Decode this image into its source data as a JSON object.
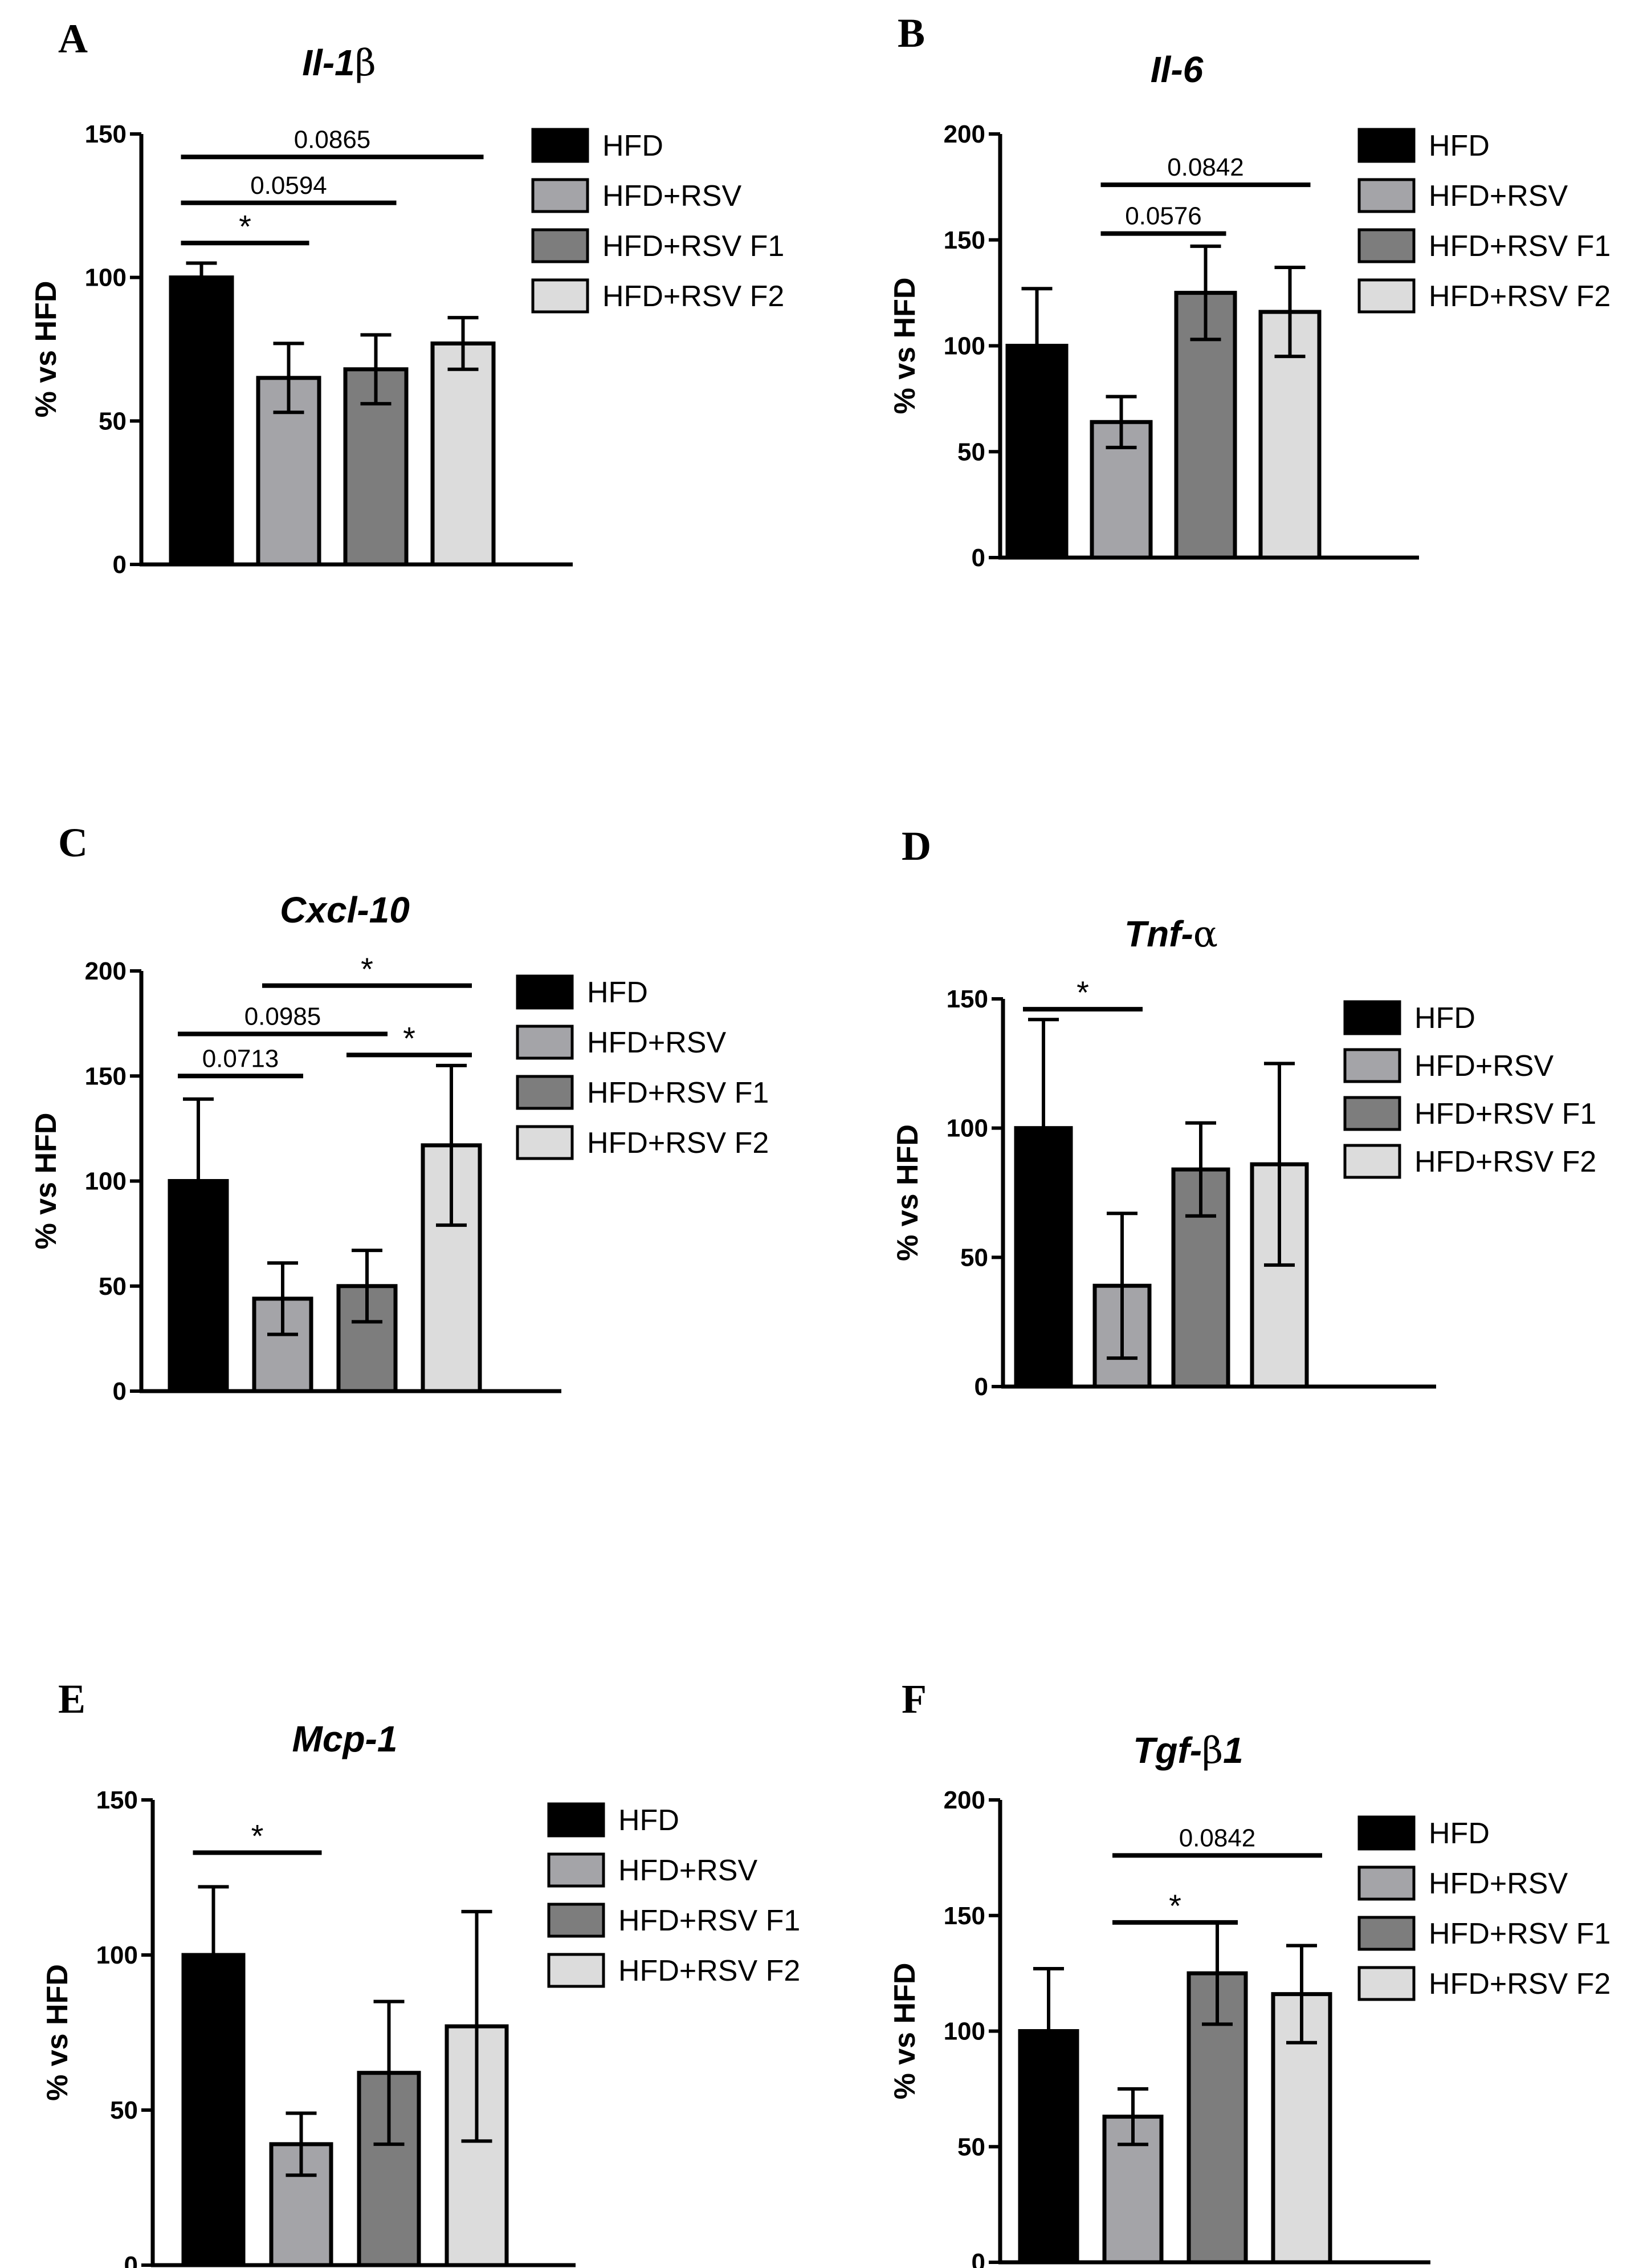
{
  "colors": {
    "HFD": "#000000",
    "HFD+RSV": "#a4a4a8",
    "HFD+RSV F1": "#7d7d7d",
    "HFD+RSV F2": "#dcdcdc",
    "axis": "#000000"
  },
  "chart_data": [
    {
      "panel": "A",
      "type": "bar",
      "title_main": "Il-1",
      "title_greek": "β",
      "title_tail": "",
      "ylabel": "% vs HFD",
      "ylim": [
        0,
        150
      ],
      "yticks": [
        0,
        50,
        100,
        150
      ],
      "categories": [
        "HFD",
        "HFD+RSV",
        "HFD+RSV F1",
        "HFD+RSV F2"
      ],
      "values": [
        100,
        65,
        68,
        77
      ],
      "errors": [
        5,
        12,
        12,
        9
      ],
      "legend": [
        "HFD",
        "HFD+RSV",
        "HFD+RSV F1",
        "HFD+RSV F2"
      ],
      "annotations": [
        {
          "from": 0,
          "to": 1,
          "label": "*",
          "y": 112
        },
        {
          "from": 0,
          "to": 2,
          "label": "0.0594",
          "y": 126
        },
        {
          "from": 0,
          "to": 3,
          "label": "0.0865",
          "y": 142
        }
      ]
    },
    {
      "panel": "B",
      "type": "bar",
      "title_main": "Il-6",
      "title_greek": "",
      "title_tail": "",
      "ylabel": "% vs HFD",
      "ylim": [
        0,
        200
      ],
      "yticks": [
        0,
        50,
        100,
        150,
        200
      ],
      "categories": [
        "HFD",
        "HFD+RSV",
        "HFD+RSV F1",
        "HFD+RSV F2"
      ],
      "values": [
        100,
        64,
        125,
        116
      ],
      "errors": [
        27,
        12,
        22,
        21
      ],
      "legend": [
        "HFD",
        "HFD+RSV",
        "HFD+RSV F1",
        "HFD+RSV F2"
      ],
      "annotations": [
        {
          "from": 1,
          "to": 2,
          "label": "0.0576",
          "y": 153
        },
        {
          "from": 1,
          "to": 3,
          "label": "0.0842",
          "y": 176
        }
      ]
    },
    {
      "panel": "C",
      "type": "bar",
      "title_main": "Cxcl-10",
      "title_greek": "",
      "title_tail": "",
      "ylabel": "% vs HFD",
      "ylim": [
        0,
        200
      ],
      "yticks": [
        0,
        50,
        100,
        150,
        200
      ],
      "categories": [
        "HFD",
        "HFD+RSV",
        "HFD+RSV F1",
        "HFD+RSV F2"
      ],
      "values": [
        100,
        44,
        50,
        117
      ],
      "errors": [
        39,
        17,
        17,
        38
      ],
      "legend": [
        "HFD",
        "HFD+RSV",
        "HFD+RSV F1",
        "HFD+RSV F2"
      ],
      "annotations": [
        {
          "from": 0,
          "to": 1,
          "label": "0.0713",
          "y": 150
        },
        {
          "from": 0,
          "to": 2,
          "label": "0.0985",
          "y": 170
        },
        {
          "from": 2,
          "to": 3,
          "label": "*",
          "y": 160
        },
        {
          "from": 1,
          "to": 3,
          "label": "*",
          "y": 193
        }
      ]
    },
    {
      "panel": "D",
      "type": "bar",
      "title_main": "Tnf-",
      "title_greek": "α",
      "title_tail": "",
      "ylabel": "% vs HFD",
      "ylim": [
        0,
        150
      ],
      "yticks": [
        0,
        50,
        100,
        150
      ],
      "categories": [
        "HFD",
        "HFD+RSV",
        "HFD+RSV F1",
        "HFD+RSV F2"
      ],
      "values": [
        100,
        39,
        84,
        86
      ],
      "errors": [
        42,
        28,
        18,
        39
      ],
      "legend": [
        "HFD",
        "HFD+RSV",
        "HFD+RSV F1",
        "HFD+RSV F2"
      ],
      "annotations": [
        {
          "from": 0,
          "to": 1,
          "label": "*",
          "y": 146
        }
      ]
    },
    {
      "panel": "E",
      "type": "bar",
      "title_main": "Mcp-1",
      "title_greek": "",
      "title_tail": "",
      "ylabel": "% vs HFD",
      "ylim": [
        0,
        150
      ],
      "yticks": [
        0,
        50,
        100,
        150
      ],
      "categories": [
        "HFD",
        "HFD+RSV",
        "HFD+RSV F1",
        "HFD+RSV F2"
      ],
      "values": [
        100,
        39,
        62,
        77
      ],
      "errors": [
        22,
        10,
        23,
        37
      ],
      "legend": [
        "HFD",
        "HFD+RSV",
        "HFD+RSV F1",
        "HFD+RSV F2"
      ],
      "annotations": [
        {
          "from": 0,
          "to": 1,
          "label": "*",
          "y": 133
        }
      ]
    },
    {
      "panel": "F",
      "type": "bar",
      "title_main": "Tgf-",
      "title_greek": "β",
      "title_tail": "1",
      "ylabel": "% vs HFD",
      "ylim": [
        0,
        200
      ],
      "yticks": [
        0,
        50,
        100,
        150,
        200
      ],
      "categories": [
        "HFD",
        "HFD+RSV",
        "HFD+RSV F1",
        "HFD+RSV F2"
      ],
      "values": [
        100,
        63,
        125,
        116
      ],
      "errors": [
        27,
        12,
        22,
        21
      ],
      "legend": [
        "HFD",
        "HFD+RSV",
        "HFD+RSV F1",
        "HFD+RSV F2"
      ],
      "annotations": [
        {
          "from": 1,
          "to": 2,
          "label": "*",
          "y": 147
        },
        {
          "from": 1,
          "to": 3,
          "label": "0.0842",
          "y": 176
        }
      ]
    }
  ]
}
